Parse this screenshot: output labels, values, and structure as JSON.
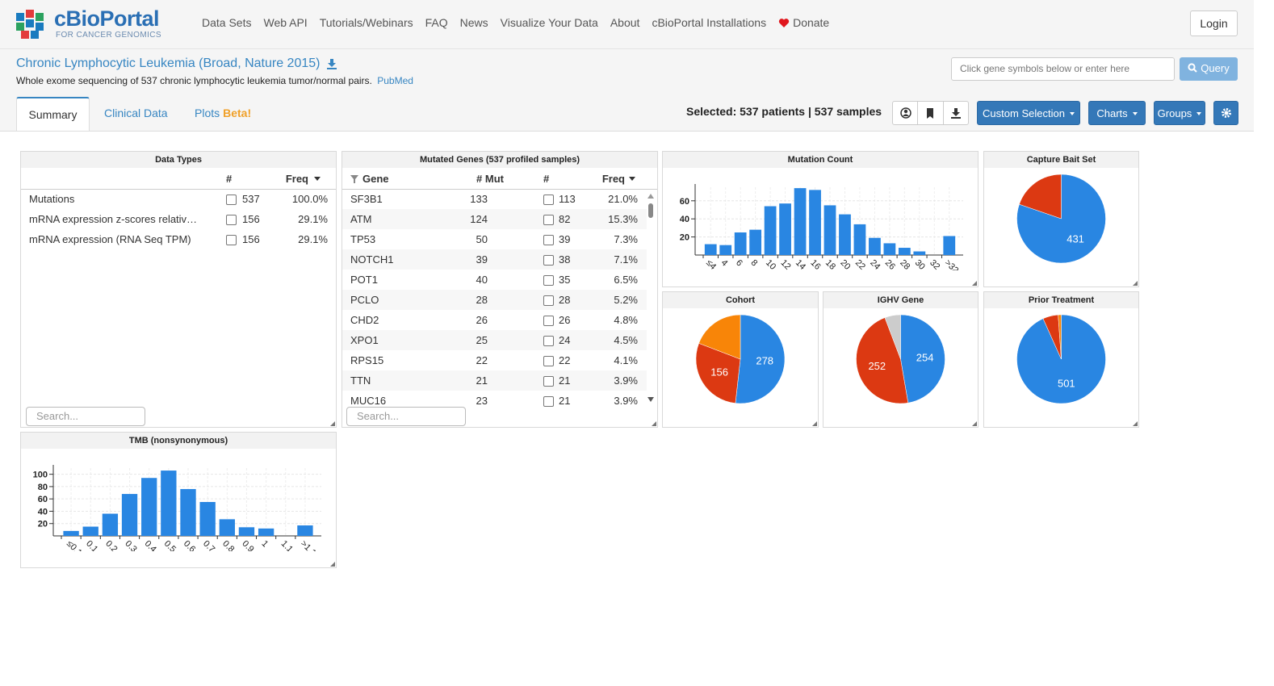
{
  "header": {
    "logo_title": "cBioPortal",
    "logo_subtitle": "FOR CANCER GENOMICS",
    "nav": [
      "Data Sets",
      "Web API",
      "Tutorials/Webinars",
      "FAQ",
      "News",
      "Visualize Your Data",
      "About",
      "cBioPortal Installations"
    ],
    "donate": "Donate",
    "login": "Login"
  },
  "study": {
    "title": "Chronic Lymphocytic Leukemia (Broad, Nature 2015)",
    "description": "Whole exome sequencing of 537 chronic lymphocytic leukemia tumor/normal pairs.",
    "pubmed": "PubMed"
  },
  "query": {
    "placeholder": "Click gene symbols below or enter here",
    "button": "Query"
  },
  "tabs": [
    "Summary",
    "Clinical Data",
    "Plots"
  ],
  "tab_badge": "Beta!",
  "selection": {
    "label": "Selected:",
    "patients": "537 patients",
    "separator": "|",
    "samples": "537 samples"
  },
  "buttons": [
    "Custom Selection",
    "Charts",
    "Groups"
  ],
  "data_types": {
    "title": "Data Types",
    "columns": [
      "#",
      "Freq"
    ],
    "rows": [
      [
        "Mutations",
        537,
        "100.0%"
      ],
      [
        "mRNA expression z-scores relativ…",
        156,
        "29.1%"
      ],
      [
        "mRNA expression (RNA Seq TPM)",
        156,
        "29.1%"
      ]
    ],
    "search": "Search..."
  },
  "mutated_genes": {
    "title": "Mutated Genes (537 profiled samples)",
    "columns": [
      "Gene",
      "# Mut",
      "#",
      "Freq"
    ],
    "rows": [
      [
        "SF3B1",
        133,
        113,
        "21.0%"
      ],
      [
        "ATM",
        124,
        82,
        "15.3%"
      ],
      [
        "TP53",
        50,
        39,
        "7.3%"
      ],
      [
        "NOTCH1",
        39,
        38,
        "7.1%"
      ],
      [
        "POT1",
        40,
        35,
        "6.5%"
      ],
      [
        "PCLO",
        28,
        28,
        "5.2%"
      ],
      [
        "CHD2",
        26,
        26,
        "4.8%"
      ],
      [
        "XPO1",
        25,
        24,
        "4.5%"
      ],
      [
        "RPS15",
        22,
        22,
        "4.1%"
      ],
      [
        "TTN",
        21,
        21,
        "3.9%"
      ],
      [
        "MUC16",
        23,
        21,
        "3.9%"
      ]
    ],
    "search": "Search..."
  },
  "chart_data": [
    {
      "type": "bar",
      "title": "Mutation Count",
      "color": "#2986e2",
      "grid": true,
      "categories": [
        "≤4",
        "4",
        "6",
        "8",
        "10",
        "12",
        "14",
        "16",
        "18",
        "20",
        "22",
        "24",
        "26",
        "28",
        "30",
        "32",
        ">32"
      ],
      "values": [
        12,
        11,
        25,
        28,
        54,
        57,
        74,
        72,
        55,
        45,
        34,
        19,
        13,
        8,
        4,
        0,
        21
      ],
      "ylim": [
        0,
        75
      ],
      "yticks": [
        20,
        40,
        60
      ]
    },
    {
      "type": "pie",
      "title": "Capture Bait Set",
      "values": [
        431,
        106
      ],
      "colors": [
        "#2986e2",
        "#dc3912"
      ]
    },
    {
      "type": "pie",
      "title": "Cohort",
      "values": [
        278,
        156,
        103
      ],
      "colors": [
        "#2986e2",
        "#dc3912",
        "#f88508"
      ]
    },
    {
      "type": "pie",
      "title": "IGHV Gene",
      "values": [
        254,
        252,
        31
      ],
      "colors": [
        "#2986e2",
        "#dc3912",
        "#cccccc"
      ]
    },
    {
      "type": "pie",
      "title": "Prior Treatment",
      "values": [
        501,
        30,
        6
      ],
      "colors": [
        "#2986e2",
        "#dc3912",
        "#f88508"
      ]
    },
    {
      "type": "bar",
      "title": "TMB (nonsynonymous)",
      "color": "#2986e2",
      "grid": true,
      "categories": [
        "≤0.1",
        "0.1",
        "0.2",
        "0.3",
        "0.4",
        "0.5",
        "0.6",
        "0.7",
        "0.8",
        "0.9",
        "1",
        "1.1",
        ">1.1"
      ],
      "values": [
        8,
        15,
        36,
        68,
        94,
        106,
        76,
        55,
        27,
        14,
        12,
        0,
        17
      ],
      "ylim": [
        0,
        110
      ],
      "yticks": [
        20,
        40,
        60,
        80,
        100
      ]
    }
  ]
}
